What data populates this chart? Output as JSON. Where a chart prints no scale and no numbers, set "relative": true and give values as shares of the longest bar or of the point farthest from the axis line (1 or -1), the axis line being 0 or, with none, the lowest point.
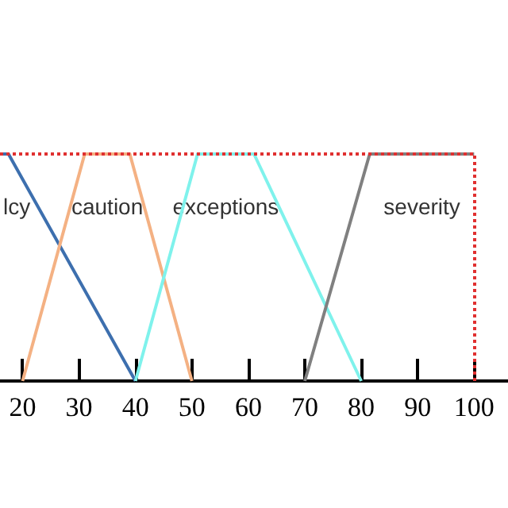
{
  "chart_data": {
    "type": "line",
    "relative": true,
    "xlim": [
      16,
      106
    ],
    "xticks": [
      20,
      30,
      40,
      50,
      60,
      70,
      80,
      90,
      100
    ],
    "tick_labels": "x",
    "marker": "none",
    "line_style": "solid",
    "series": [
      {
        "name": "lcy",
        "color": "#3d6fae",
        "x": [
          16,
          17.5,
          40
        ],
        "values": [
          1,
          1,
          0
        ]
      },
      {
        "name": "caution",
        "color": "#f4b183",
        "x": [
          20,
          31,
          39,
          50
        ],
        "values": [
          0,
          1,
          1,
          0
        ]
      },
      {
        "name": "exceptions",
        "color": "#7ff2ec",
        "x": [
          40,
          51,
          61,
          80
        ],
        "values": [
          0,
          1,
          1,
          0
        ]
      },
      {
        "name": "severity",
        "color": "#808080",
        "x": [
          70,
          81.5,
          100
        ],
        "values": [
          0,
          1,
          1
        ]
      },
      {
        "color": "#e03030",
        "line_style": "dotted",
        "x": [
          16,
          100
        ],
        "values": [
          1,
          1
        ]
      }
    ],
    "ref_lines": [
      {
        "axis": "x",
        "value": 100,
        "color": "#e03030",
        "line_style": "dotted"
      }
    ]
  }
}
